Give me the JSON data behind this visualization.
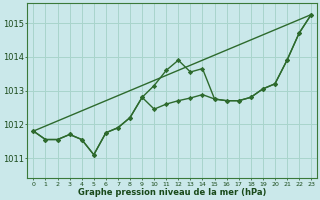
{
  "background_color": "#cae8ea",
  "grid_color": "#a8d4cc",
  "line_color": "#2d6a2d",
  "marker_color": "#2d6a2d",
  "xlabel": "Graphe pression niveau de la mer (hPa)",
  "x_ticks": [
    0,
    1,
    2,
    3,
    4,
    5,
    6,
    7,
    8,
    9,
    10,
    11,
    12,
    13,
    14,
    15,
    16,
    17,
    18,
    19,
    20,
    21,
    22,
    23
  ],
  "y_ticks": [
    1011,
    1012,
    1013,
    1014,
    1015
  ],
  "ylim": [
    1010.4,
    1015.6
  ],
  "xlim": [
    -0.5,
    23.5
  ],
  "series1": [
    1011.8,
    1011.55,
    1011.55,
    1011.7,
    1011.55,
    1011.1,
    1011.75,
    1011.9,
    1012.2,
    1012.8,
    1013.15,
    1013.6,
    1013.9,
    1013.55,
    1013.65,
    1012.75,
    1012.7,
    1012.7,
    1012.8,
    1013.05,
    1013.2,
    1013.9,
    1014.7,
    1015.25
  ],
  "series2": [
    1011.8,
    1011.55,
    1011.55,
    1011.7,
    1011.55,
    1011.1,
    1011.75,
    1011.9,
    1012.2,
    1012.8,
    1012.45,
    1012.6,
    1012.7,
    1012.78,
    1012.88,
    1012.75,
    1012.7,
    1012.7,
    1012.8,
    1013.05,
    1013.2,
    1013.9,
    1014.7,
    1015.25
  ],
  "series3_x": [
    0,
    23
  ],
  "series3_y": [
    1011.8,
    1015.25
  ]
}
